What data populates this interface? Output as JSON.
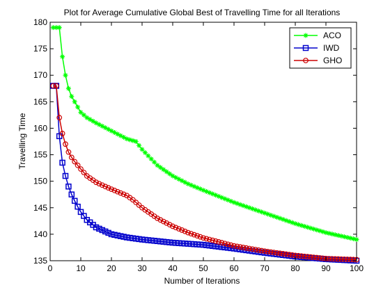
{
  "chart_data": {
    "type": "line",
    "title": "Plot for Average Cumulative Global Best of Travelling Time for all Iterations",
    "xlabel": "Number of Iterations",
    "ylabel": "Travelling Time",
    "xlim": [
      0,
      100
    ],
    "ylim": [
      135,
      180
    ],
    "xticks": [
      0,
      10,
      20,
      30,
      40,
      50,
      60,
      70,
      80,
      90,
      100
    ],
    "yticks": [
      135,
      140,
      145,
      150,
      155,
      160,
      165,
      170,
      175,
      180
    ],
    "grid": false,
    "legend_position": "top-right",
    "series": [
      {
        "name": "ACO",
        "color": "#00ff00",
        "marker": "star",
        "points": [
          [
            1,
            179
          ],
          [
            2,
            179
          ],
          [
            3,
            179
          ],
          [
            4,
            173.5
          ],
          [
            5,
            170
          ],
          [
            6,
            167.5
          ],
          [
            7,
            166
          ],
          [
            8,
            165
          ],
          [
            9,
            164
          ],
          [
            10,
            163
          ],
          [
            12,
            162
          ],
          [
            15,
            161
          ],
          [
            20,
            159.5
          ],
          [
            25,
            158
          ],
          [
            28,
            157.5
          ],
          [
            30,
            156
          ],
          [
            35,
            153
          ],
          [
            40,
            151
          ],
          [
            45,
            149.5
          ],
          [
            50,
            148.3
          ],
          [
            60,
            146
          ],
          [
            70,
            144
          ],
          [
            80,
            142
          ],
          [
            90,
            140.3
          ],
          [
            100,
            139
          ]
        ]
      },
      {
        "name": "IWD",
        "color": "#0000cc",
        "marker": "square",
        "points": [
          [
            1,
            168
          ],
          [
            2,
            168
          ],
          [
            3,
            158.5
          ],
          [
            4,
            153.5
          ],
          [
            5,
            151
          ],
          [
            6,
            149
          ],
          [
            7,
            147.5
          ],
          [
            8,
            146.3
          ],
          [
            9,
            145.2
          ],
          [
            10,
            144.2
          ],
          [
            12,
            142.7
          ],
          [
            15,
            141.3
          ],
          [
            20,
            140
          ],
          [
            25,
            139.4
          ],
          [
            30,
            139
          ],
          [
            40,
            138.4
          ],
          [
            50,
            138
          ],
          [
            60,
            137.3
          ],
          [
            70,
            136.5
          ],
          [
            80,
            135.8
          ],
          [
            90,
            135.3
          ],
          [
            100,
            135
          ]
        ]
      },
      {
        "name": "GHO",
        "color": "#cc0000",
        "marker": "circle",
        "points": [
          [
            1,
            168
          ],
          [
            2,
            168
          ],
          [
            3,
            162
          ],
          [
            4,
            159
          ],
          [
            5,
            157
          ],
          [
            6,
            155.5
          ],
          [
            7,
            154.5
          ],
          [
            8,
            153.7
          ],
          [
            9,
            153
          ],
          [
            10,
            152.3
          ],
          [
            12,
            151
          ],
          [
            15,
            149.8
          ],
          [
            18,
            149
          ],
          [
            20,
            148.5
          ],
          [
            25,
            147.3
          ],
          [
            27,
            146.5
          ],
          [
            30,
            145
          ],
          [
            35,
            143
          ],
          [
            40,
            141.5
          ],
          [
            45,
            140.3
          ],
          [
            50,
            139.3
          ],
          [
            60,
            137.8
          ],
          [
            70,
            136.8
          ],
          [
            80,
            136
          ],
          [
            90,
            135.4
          ],
          [
            100,
            135.2
          ]
        ]
      }
    ]
  }
}
